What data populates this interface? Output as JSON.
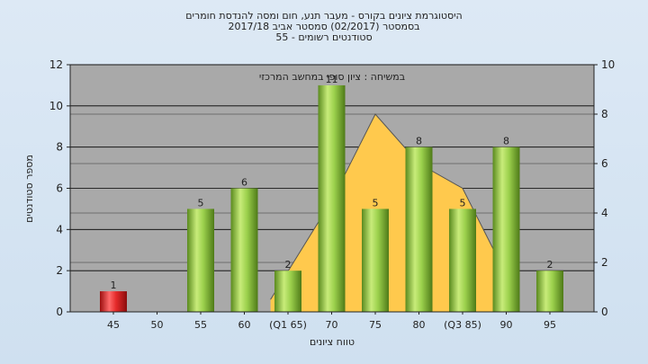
{
  "chart_data": {
    "type": "bar",
    "title_lines": [
      "היסטוגרמת ציונים בקורס - מעבר תנע, חום ומסה להנדסת חומרים",
      "בסמסטר  (02/2017)  סמסטר אביב 2017/18",
      "סטודנטים רשומים - 55"
    ],
    "annotation": "במשיחה : ציון סופי במחשב המרכזי",
    "xlabel": "טווח ציונים",
    "ylabel": "מספר סטודנטים",
    "categories": [
      "45",
      "50",
      "55",
      "60",
      "(Q1 65)",
      "70",
      "75",
      "80",
      "(Q3 85)",
      "90",
      "95"
    ],
    "values": [
      1,
      0,
      5,
      6,
      2,
      11,
      5,
      8,
      5,
      8,
      2
    ],
    "value_labels": [
      "1",
      "",
      "5",
      "6",
      "2",
      "11",
      "5",
      "8",
      "5",
      "8",
      "2"
    ],
    "highlight_index": 0,
    "ylim": [
      0,
      12
    ],
    "yticks": [
      0,
      2,
      4,
      6,
      8,
      10,
      12
    ],
    "y2lim": [
      0,
      10
    ],
    "y2ticks": [
      0,
      2,
      4,
      6,
      8,
      10
    ],
    "distribution_curve": {
      "x_index": [
        3.6,
        5.0,
        6.0,
        7.0,
        8.0,
        9.0
      ],
      "y2": [
        0.5,
        4.5,
        8.0,
        6.0,
        5.0,
        1.5
      ]
    },
    "grid": true,
    "colors": {
      "plot_bg": "#a9a9a9",
      "bar": "#8cc63f",
      "bar_highlight": "#e02020",
      "curve_fill": "#ffc94d",
      "grid": "#000000"
    }
  }
}
